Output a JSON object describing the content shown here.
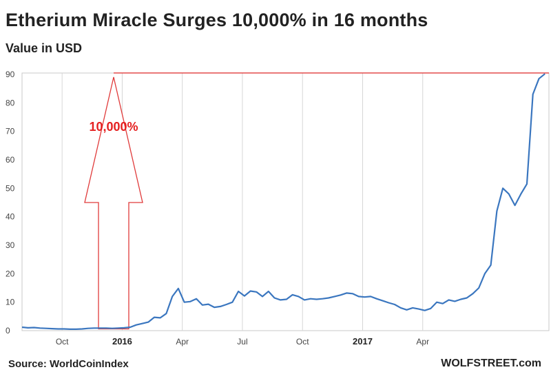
{
  "chart_data": {
    "type": "line",
    "title": "Etherium Miracle Surges 10,000% in 16 months",
    "ylabel": "Value in USD",
    "source": "Source: WorldCoinIndex",
    "brand": "WOLFSTREET.com",
    "annotation": "10,000%",
    "ylim": [
      0,
      90
    ],
    "y_ticks": [
      0,
      10,
      20,
      30,
      40,
      50,
      60,
      70,
      80,
      90
    ],
    "x_ticks": [
      {
        "label": "Oct",
        "month": 2,
        "bold": false
      },
      {
        "label": "2016",
        "month": 5,
        "bold": true
      },
      {
        "label": "Apr",
        "month": 8,
        "bold": false
      },
      {
        "label": "Jul",
        "month": 11,
        "bold": false
      },
      {
        "label": "Oct",
        "month": 14,
        "bold": false
      },
      {
        "label": "2017",
        "month": 17,
        "bold": true
      },
      {
        "label": "Apr",
        "month": 20,
        "bold": false
      }
    ],
    "reference_line_value": 90.5,
    "grid": "vertical",
    "series": [
      {
        "color": "#3a76bf",
        "points": [
          [
            0.0,
            1.2
          ],
          [
            0.3,
            1.0
          ],
          [
            0.6,
            1.1
          ],
          [
            0.9,
            0.9
          ],
          [
            1.2,
            0.8
          ],
          [
            1.5,
            0.7
          ],
          [
            1.8,
            0.6
          ],
          [
            2.1,
            0.6
          ],
          [
            2.4,
            0.5
          ],
          [
            2.7,
            0.5
          ],
          [
            3.0,
            0.6
          ],
          [
            3.3,
            0.8
          ],
          [
            3.6,
            0.9
          ],
          [
            3.9,
            0.9
          ],
          [
            4.2,
            0.9
          ],
          [
            4.5,
            0.8
          ],
          [
            4.8,
            0.9
          ],
          [
            5.1,
            1.0
          ],
          [
            5.4,
            1.2
          ],
          [
            5.7,
            2.0
          ],
          [
            6.0,
            2.5
          ],
          [
            6.3,
            3.0
          ],
          [
            6.6,
            4.7
          ],
          [
            6.9,
            4.5
          ],
          [
            7.2,
            6.0
          ],
          [
            7.5,
            12.0
          ],
          [
            7.8,
            14.8
          ],
          [
            8.1,
            10.0
          ],
          [
            8.4,
            10.2
          ],
          [
            8.7,
            11.2
          ],
          [
            9.0,
            9.0
          ],
          [
            9.3,
            9.3
          ],
          [
            9.6,
            8.2
          ],
          [
            9.9,
            8.5
          ],
          [
            10.2,
            9.2
          ],
          [
            10.5,
            10.0
          ],
          [
            10.8,
            13.8
          ],
          [
            11.1,
            12.2
          ],
          [
            11.4,
            13.9
          ],
          [
            11.7,
            13.6
          ],
          [
            12.0,
            12.0
          ],
          [
            12.3,
            13.8
          ],
          [
            12.6,
            11.5
          ],
          [
            12.9,
            10.8
          ],
          [
            13.2,
            11.0
          ],
          [
            13.5,
            12.6
          ],
          [
            13.8,
            12.0
          ],
          [
            14.1,
            10.8
          ],
          [
            14.4,
            11.2
          ],
          [
            14.7,
            11.0
          ],
          [
            15.0,
            11.2
          ],
          [
            15.3,
            11.5
          ],
          [
            15.6,
            12.0
          ],
          [
            15.9,
            12.5
          ],
          [
            16.2,
            13.2
          ],
          [
            16.5,
            13.0
          ],
          [
            16.8,
            12.0
          ],
          [
            17.1,
            11.8
          ],
          [
            17.4,
            12.0
          ],
          [
            17.7,
            11.2
          ],
          [
            18.0,
            10.5
          ],
          [
            18.3,
            9.8
          ],
          [
            18.6,
            9.2
          ],
          [
            18.9,
            8.0
          ],
          [
            19.2,
            7.3
          ],
          [
            19.5,
            8.0
          ],
          [
            19.8,
            7.6
          ],
          [
            20.1,
            7.1
          ],
          [
            20.4,
            7.8
          ],
          [
            20.7,
            10.0
          ],
          [
            21.0,
            9.5
          ],
          [
            21.3,
            10.8
          ],
          [
            21.6,
            10.3
          ],
          [
            21.9,
            11.0
          ],
          [
            22.2,
            11.5
          ],
          [
            22.5,
            13.0
          ],
          [
            22.8,
            15.0
          ],
          [
            23.1,
            20.0
          ],
          [
            23.4,
            23.0
          ],
          [
            23.7,
            42.0
          ],
          [
            24.0,
            50.0
          ],
          [
            24.3,
            48.0
          ],
          [
            24.6,
            44.0
          ],
          [
            24.9,
            48.0
          ],
          [
            25.2,
            51.5
          ],
          [
            25.5,
            83.0
          ],
          [
            25.8,
            88.5
          ],
          [
            26.1,
            90.2
          ]
        ]
      }
    ]
  }
}
